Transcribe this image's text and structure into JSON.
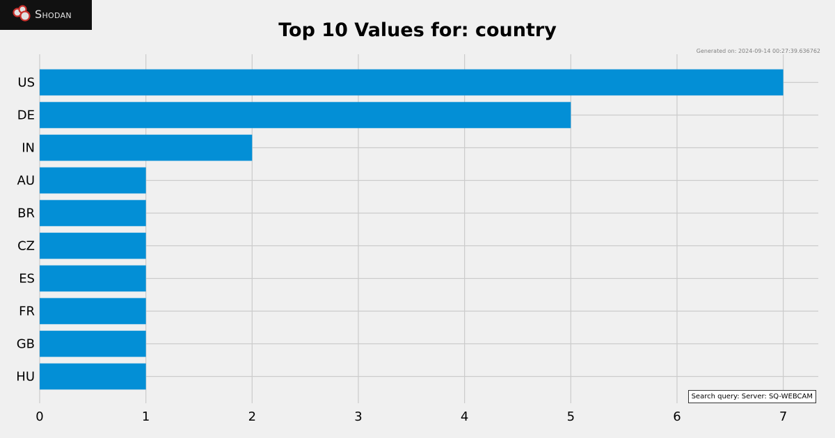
{
  "brand": {
    "logo_text": "Shodan",
    "logo_icon": "shodan-logo-icon"
  },
  "generated_text": "Generated on: 2024-09-14 00:27:39.636762",
  "search_query_text": "Search query: Server: SQ-WEBCAM",
  "colors": {
    "bar": "#038fd6",
    "background": "#f0f0f0",
    "grid": "#cbcbcb"
  },
  "chart_data": {
    "type": "bar",
    "orientation": "horizontal",
    "title": "Top 10 Values for: country",
    "xlabel": "",
    "ylabel": "",
    "categories": [
      "US",
      "DE",
      "IN",
      "AU",
      "BR",
      "CZ",
      "ES",
      "FR",
      "GB",
      "HU"
    ],
    "values": [
      7,
      5,
      2,
      1,
      1,
      1,
      1,
      1,
      1,
      1
    ],
    "xlim": [
      0,
      7.33
    ],
    "xticks": [
      "0",
      "1",
      "2",
      "3",
      "4",
      "5",
      "6",
      "7"
    ],
    "grid": true,
    "legend": "none"
  }
}
